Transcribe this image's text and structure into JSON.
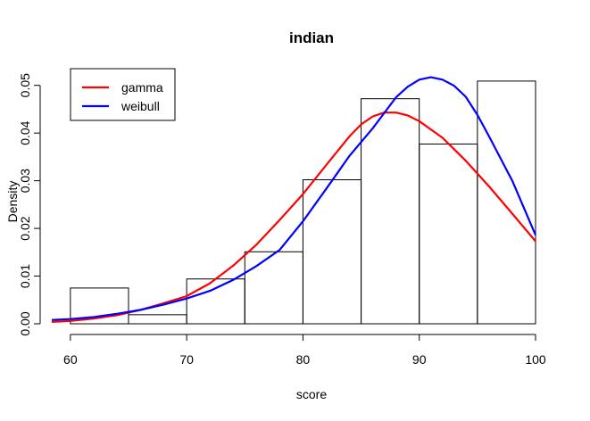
{
  "chart_data": {
    "type": "histogram",
    "title": "indian",
    "xlabel": "score",
    "ylabel": "Density",
    "xlim": [
      58.4,
      100.0
    ],
    "ylim": [
      0.0,
      0.0535
    ],
    "xticks": [
      60,
      70,
      80,
      90,
      100
    ],
    "yticks": [
      0.0,
      0.01,
      0.02,
      0.03,
      0.04,
      0.05
    ],
    "ytick_labels": [
      "0.00",
      "0.01",
      "0.02",
      "0.03",
      "0.04",
      "0.05"
    ],
    "bins": [
      {
        "start": 60,
        "end": 65,
        "density": 0.0075
      },
      {
        "start": 65,
        "end": 70,
        "density": 0.0019
      },
      {
        "start": 70,
        "end": 75,
        "density": 0.0094
      },
      {
        "start": 75,
        "end": 80,
        "density": 0.0151
      },
      {
        "start": 80,
        "end": 85,
        "density": 0.0302
      },
      {
        "start": 85,
        "end": 90,
        "density": 0.0472
      },
      {
        "start": 90,
        "end": 95,
        "density": 0.0377
      },
      {
        "start": 95,
        "end": 100,
        "density": 0.0509
      }
    ],
    "series": [
      {
        "name": "gamma",
        "color": "#ff0000",
        "x": [
          58.4,
          60,
          62,
          64,
          66,
          68,
          70,
          72,
          74,
          76,
          78,
          80,
          82,
          84,
          85,
          86,
          87,
          88,
          89,
          90,
          92,
          94,
          96,
          98,
          100
        ],
        "y": [
          0.0004,
          0.0006,
          0.0011,
          0.0018,
          0.0029,
          0.0043,
          0.0058,
          0.0085,
          0.0122,
          0.0166,
          0.0218,
          0.0272,
          0.0333,
          0.0393,
          0.0418,
          0.0435,
          0.0443,
          0.0443,
          0.0437,
          0.0425,
          0.039,
          0.0342,
          0.0288,
          0.0231,
          0.0173
        ]
      },
      {
        "name": "weibull",
        "color": "#0000ff",
        "x": [
          58.4,
          60,
          62,
          64,
          66,
          68,
          70,
          72,
          74,
          76,
          78,
          80,
          82,
          84,
          86,
          88,
          89,
          90,
          91,
          92,
          93,
          94,
          95,
          96,
          98,
          100
        ],
        "y": [
          0.0008,
          0.001,
          0.0014,
          0.0021,
          0.0029,
          0.004,
          0.0053,
          0.0069,
          0.0092,
          0.0121,
          0.0155,
          0.0215,
          0.0283,
          0.0352,
          0.041,
          0.0475,
          0.0497,
          0.0512,
          0.0517,
          0.0512,
          0.0499,
          0.0476,
          0.0438,
          0.0393,
          0.03,
          0.0186
        ]
      }
    ],
    "legend": {
      "position": "top-left",
      "entries": [
        "gamma",
        "weibull"
      ]
    }
  }
}
